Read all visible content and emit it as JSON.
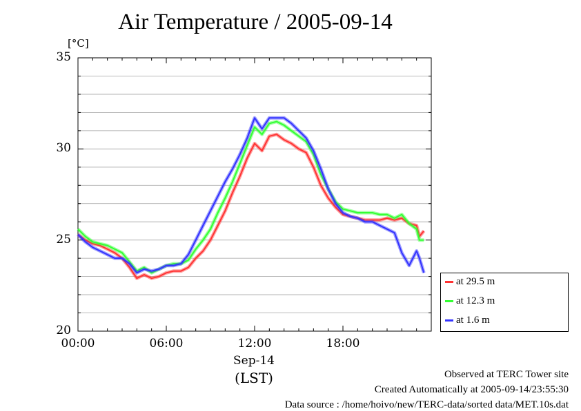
{
  "title": "Air Temperature / 2005-09-14",
  "chart_data": {
    "type": "line",
    "title": "Air Temperature / 2005-09-14",
    "ylabel": "[°C]",
    "xlabel": "Sep-14",
    "xlabel2": "(LST)",
    "x_unit": "hour of day",
    "xlim": [
      0,
      24
    ],
    "ylim": [
      20,
      35
    ],
    "x_ticks": [
      "00:00",
      "06:00",
      "12:00",
      "18:00"
    ],
    "y_ticks": [
      "20",
      "25",
      "30",
      "35"
    ],
    "grid": true,
    "legend_position": "right-bottom",
    "series": [
      {
        "name": "at 29.5 m",
        "color": "#ff3333",
        "x": [
          0,
          0.5,
          1,
          1.5,
          2,
          2.5,
          3,
          3.5,
          4,
          4.5,
          5,
          5.5,
          6,
          6.5,
          7,
          7.5,
          8,
          8.5,
          9,
          9.5,
          10,
          10.5,
          11,
          11.5,
          12,
          12.5,
          13,
          13.5,
          14,
          14.5,
          15,
          15.5,
          16,
          16.5,
          17,
          17.5,
          18,
          18.5,
          19,
          19.5,
          20,
          20.5,
          21,
          21.5,
          22,
          22.5,
          23,
          23.2,
          23.5
        ],
        "values": [
          25.3,
          25.0,
          24.8,
          24.7,
          24.5,
          24.3,
          24.0,
          23.5,
          22.9,
          23.1,
          22.9,
          23.0,
          23.2,
          23.3,
          23.3,
          23.5,
          24.0,
          24.4,
          25.0,
          25.8,
          26.6,
          27.6,
          28.5,
          29.5,
          30.3,
          29.9,
          30.7,
          30.8,
          30.5,
          30.3,
          30.0,
          29.8,
          29.0,
          28.0,
          27.3,
          26.8,
          26.4,
          26.3,
          26.2,
          26.1,
          26.1,
          26.1,
          26.2,
          26.1,
          26.2,
          25.9,
          25.8,
          25.2,
          25.5
        ]
      },
      {
        "name": "at 12.3 m",
        "color": "#33ff33",
        "x": [
          0,
          0.5,
          1,
          1.5,
          2,
          2.5,
          3,
          3.5,
          4,
          4.5,
          5,
          5.5,
          6,
          6.5,
          7,
          7.5,
          8,
          8.5,
          9,
          9.5,
          10,
          10.5,
          11,
          11.5,
          12,
          12.5,
          13,
          13.5,
          14,
          14.5,
          15,
          15.5,
          16,
          16.5,
          17,
          17.5,
          18,
          18.5,
          19,
          19.5,
          20,
          20.5,
          21,
          21.5,
          22,
          22.5,
          23,
          23.2,
          23.5
        ],
        "values": [
          25.6,
          25.2,
          24.9,
          24.8,
          24.7,
          24.5,
          24.3,
          23.8,
          23.3,
          23.5,
          23.2,
          23.4,
          23.6,
          23.7,
          23.7,
          23.9,
          24.5,
          25.0,
          25.6,
          26.5,
          27.3,
          28.2,
          29.2,
          30.2,
          31.2,
          30.8,
          31.4,
          31.5,
          31.3,
          31.0,
          30.7,
          30.4,
          29.7,
          28.6,
          27.8,
          27.1,
          26.7,
          26.6,
          26.5,
          26.5,
          26.5,
          26.4,
          26.4,
          26.2,
          26.4,
          25.9,
          25.6,
          25.0,
          25.0
        ]
      },
      {
        "name": "at 1.6 m",
        "color": "#3333ff",
        "x": [
          0,
          0.5,
          1,
          1.5,
          2,
          2.5,
          3,
          3.5,
          4,
          4.5,
          5,
          5.5,
          6,
          6.5,
          7,
          7.5,
          8,
          8.5,
          9,
          9.5,
          10,
          10.5,
          11,
          11.5,
          12,
          12.5,
          13,
          13.5,
          14,
          14.5,
          15,
          15.5,
          16,
          16.5,
          17,
          17.5,
          18,
          18.5,
          19,
          19.5,
          20,
          20.5,
          21,
          21.5,
          22,
          22.5,
          23,
          23.2,
          23.5
        ],
        "values": [
          25.3,
          24.9,
          24.6,
          24.4,
          24.2,
          24.0,
          24.0,
          23.7,
          23.2,
          23.4,
          23.3,
          23.4,
          23.6,
          23.6,
          23.7,
          24.2,
          25.0,
          25.8,
          26.6,
          27.4,
          28.2,
          28.9,
          29.7,
          30.6,
          31.7,
          31.1,
          31.7,
          31.7,
          31.7,
          31.4,
          31.0,
          30.6,
          29.9,
          28.9,
          27.8,
          27.0,
          26.5,
          26.3,
          26.2,
          26.0,
          26.0,
          25.8,
          25.6,
          25.4,
          24.3,
          23.6,
          24.4,
          24.0,
          23.2
        ]
      }
    ]
  },
  "footer": {
    "line1": "Observed at TERC Tower site",
    "line2": "Created Automatically at 2005-09-14/23:55:30",
    "line3": "Data source : /home/hoivo/new/TERC-data/sorted  data/MET.10s.dat"
  }
}
